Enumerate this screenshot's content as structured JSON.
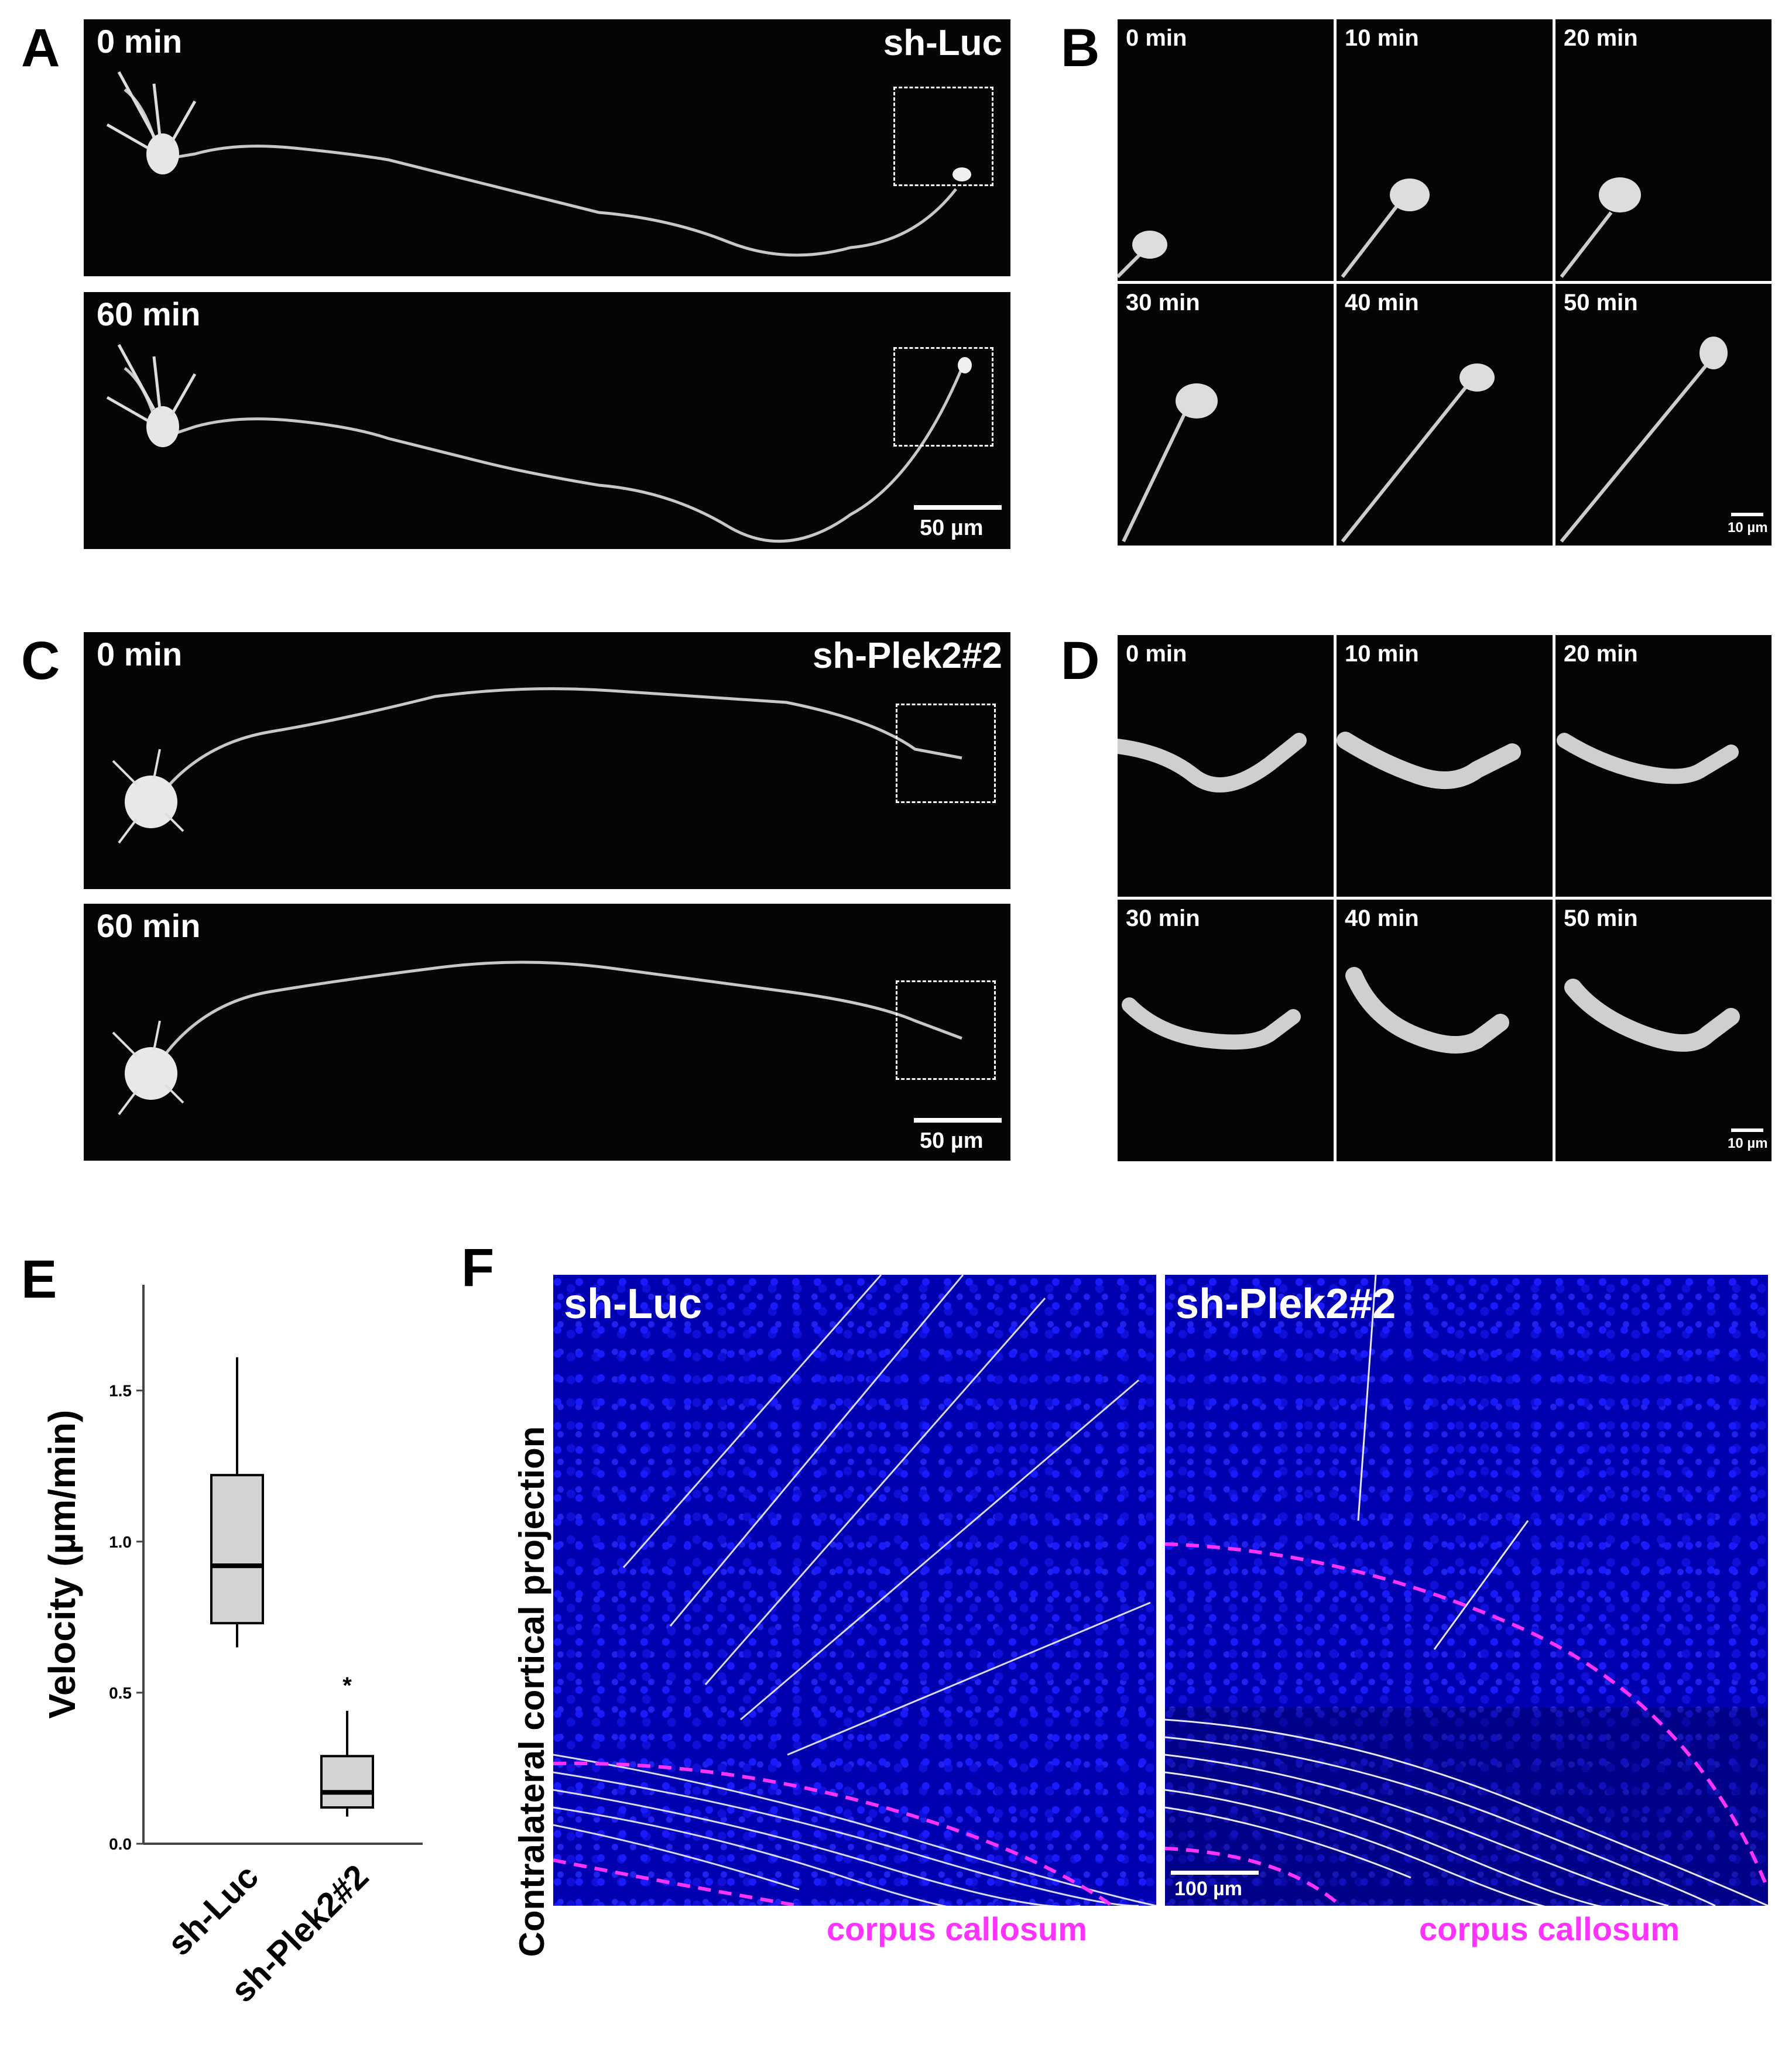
{
  "panels": {
    "A": {
      "letter": "A",
      "label": "sh-Luc",
      "t0": "0 min",
      "t1": "60 min",
      "scale": "50 µm"
    },
    "B": {
      "letter": "B",
      "times": [
        "0 min",
        "10 min",
        "20 min",
        "30 min",
        "40 min",
        "50 min"
      ],
      "scale": "10 µm"
    },
    "C": {
      "letter": "C",
      "label": "sh-Plek2#2",
      "t0": "0 min",
      "t1": "60 min",
      "scale": "50 µm"
    },
    "D": {
      "letter": "D",
      "times": [
        "0 min",
        "10 min",
        "20 min",
        "30 min",
        "40 min",
        "50 min"
      ],
      "scale": "10 µm"
    },
    "E": {
      "letter": "E"
    },
    "F": {
      "letter": "F",
      "ylabel": "Contralateral cortical projection",
      "left_label": "sh-Luc",
      "right_label": "sh-Plek2#2",
      "region": "corpus callosum",
      "scale": "100 µm"
    }
  },
  "chart_data": {
    "type": "box",
    "ylabel": "Velocity (µm/min)",
    "categories": [
      "sh-Luc",
      "sh-Plek2#2"
    ],
    "ylim": [
      0,
      1.85
    ],
    "yticks": [
      "0.0",
      "0.5",
      "1.0",
      "1.5"
    ],
    "yticks_values": [
      0,
      0.5,
      1.0,
      1.5
    ],
    "boxes": [
      {
        "name": "sh-Luc",
        "min": 0.65,
        "q1": 0.73,
        "median": 0.92,
        "q3": 1.22,
        "max": 1.61
      },
      {
        "name": "sh-Plek2#2",
        "min": 0.09,
        "q1": 0.12,
        "median": 0.17,
        "q3": 0.29,
        "max": 0.44
      }
    ],
    "significance": "*",
    "colors": {
      "box": "#d3d3d3",
      "line": "#000000"
    }
  }
}
